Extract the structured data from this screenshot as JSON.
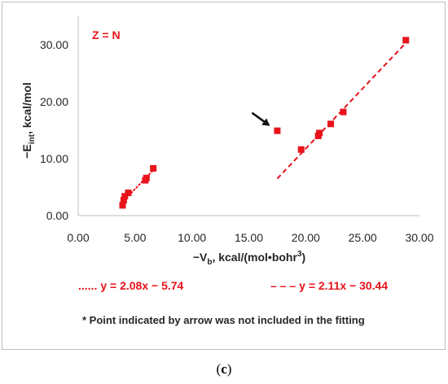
{
  "caption": {
    "open": "(",
    "letter": "c",
    "close": ")"
  },
  "chart_data": {
    "type": "scatter",
    "inset_label": "Z = N",
    "xlabel": {
      "prefix": "−V",
      "sub": "b",
      "mid": ", kcal/(mol•bohr",
      "sup": "3",
      "suffix": ")"
    },
    "ylabel": {
      "prefix": "−E",
      "sub": "int",
      "suffix": ", kcal/mol"
    },
    "xlim": [
      0,
      30
    ],
    "ylim": [
      0,
      35
    ],
    "x_ticks": [
      0,
      5,
      10,
      15,
      20,
      25,
      30
    ],
    "x_tick_labels": [
      "0.00",
      "5.00",
      "10.00",
      "15.00",
      "20.00",
      "25.00",
      "30.00"
    ],
    "y_ticks": [
      0,
      10,
      20,
      30
    ],
    "y_tick_labels": [
      "0.00",
      "10.00",
      "20.00",
      "30.00"
    ],
    "grid": false,
    "colors": {
      "series": "#e8131b",
      "text": "#262626",
      "arrow": "#111111"
    },
    "points": [
      {
        "x": 3.9,
        "y": 1.8
      },
      {
        "x": 4.0,
        "y": 2.7
      },
      {
        "x": 4.1,
        "y": 3.4
      },
      {
        "x": 4.4,
        "y": 4.0
      },
      {
        "x": 5.9,
        "y": 6.2
      },
      {
        "x": 6.0,
        "y": 6.6
      },
      {
        "x": 6.6,
        "y": 8.3
      },
      {
        "x": 17.5,
        "y": 14.9
      },
      {
        "x": 19.6,
        "y": 11.6
      },
      {
        "x": 21.1,
        "y": 14.0
      },
      {
        "x": 21.2,
        "y": 14.5
      },
      {
        "x": 22.2,
        "y": 16.1
      },
      {
        "x": 23.3,
        "y": 18.2
      },
      {
        "x": 28.8,
        "y": 30.8
      }
    ],
    "fits": [
      {
        "style": "dotted",
        "x": [
          4.0,
          6.6
        ],
        "equation": "y = 2.08x − 5.74",
        "legend_marker": "......"
      },
      {
        "style": "dashed",
        "x": [
          17.5,
          28.9
        ],
        "equation": "y = 2.11x − 30.44",
        "legend_marker": "– – –"
      }
    ],
    "arrow_target": {
      "x": 17.5,
      "y": 14.9
    },
    "footnote": "* Point indicated by arrow was not included in the fitting"
  }
}
